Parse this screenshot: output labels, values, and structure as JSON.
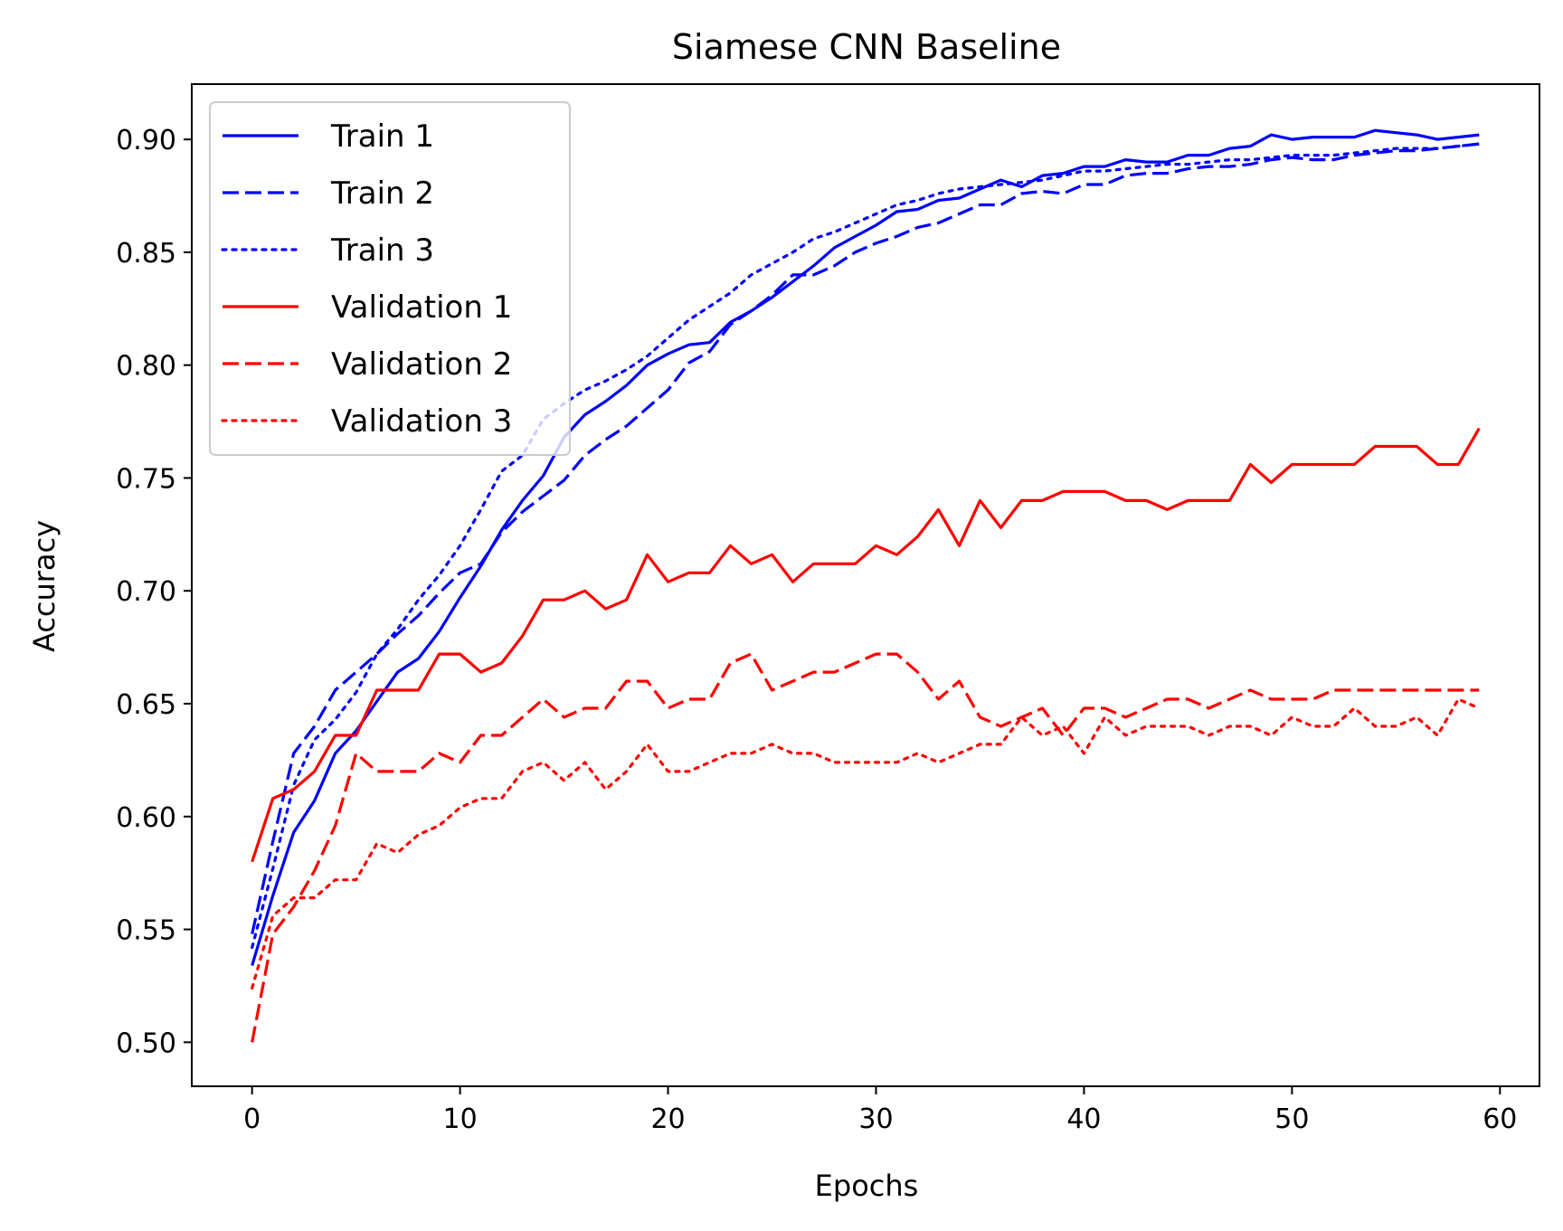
{
  "chart_data": {
    "type": "line",
    "title": "Siamese CNN Baseline",
    "xlabel": "Epochs",
    "ylabel": "Accuracy",
    "xlim": [
      -2.9,
      61.9
    ],
    "ylim": [
      0.4805,
      0.9245
    ],
    "xticks": [
      0,
      10,
      20,
      30,
      40,
      50,
      60
    ],
    "yticks": [
      0.5,
      0.55,
      0.6,
      0.65,
      0.7,
      0.75,
      0.8,
      0.85,
      0.9
    ],
    "xtick_labels": [
      "0",
      "10",
      "20",
      "30",
      "40",
      "50",
      "60"
    ],
    "ytick_labels": [
      "0.50",
      "0.55",
      "0.60",
      "0.65",
      "0.70",
      "0.75",
      "0.80",
      "0.85",
      "0.90"
    ],
    "grid": false,
    "legend_position": "upper-left",
    "series": [
      {
        "name": "Train 1",
        "color": "#0000ff",
        "style": "solid",
        "values": [
          0.534,
          0.565,
          0.593,
          0.607,
          0.628,
          0.638,
          0.651,
          0.664,
          0.67,
          0.682,
          0.697,
          0.711,
          0.727,
          0.74,
          0.751,
          0.768,
          0.778,
          0.784,
          0.791,
          0.8,
          0.805,
          0.809,
          0.81,
          0.819,
          0.824,
          0.83,
          0.837,
          0.844,
          0.852,
          0.857,
          0.862,
          0.868,
          0.869,
          0.873,
          0.874,
          0.878,
          0.882,
          0.879,
          0.884,
          0.885,
          0.888,
          0.888,
          0.891,
          0.89,
          0.89,
          0.893,
          0.893,
          0.896,
          0.897,
          0.902,
          0.9,
          0.901,
          0.901,
          0.901,
          0.904,
          0.903,
          0.902,
          0.9,
          0.901,
          0.902
        ]
      },
      {
        "name": "Train 2",
        "color": "#0000ff",
        "style": "dashed",
        "values": [
          0.548,
          0.589,
          0.628,
          0.64,
          0.656,
          0.664,
          0.672,
          0.681,
          0.689,
          0.699,
          0.708,
          0.712,
          0.726,
          0.735,
          0.742,
          0.749,
          0.76,
          0.767,
          0.773,
          0.781,
          0.789,
          0.801,
          0.806,
          0.818,
          0.824,
          0.831,
          0.84,
          0.84,
          0.844,
          0.85,
          0.854,
          0.857,
          0.861,
          0.863,
          0.867,
          0.871,
          0.871,
          0.876,
          0.877,
          0.876,
          0.88,
          0.88,
          0.884,
          0.885,
          0.885,
          0.887,
          0.888,
          0.888,
          0.889,
          0.891,
          0.892,
          0.891,
          0.891,
          0.893,
          0.894,
          0.895,
          0.895,
          0.896,
          0.897,
          0.898
        ]
      },
      {
        "name": "Train 3",
        "color": "#0000ff",
        "style": "dotted",
        "values": [
          0.542,
          0.577,
          0.614,
          0.634,
          0.643,
          0.655,
          0.672,
          0.683,
          0.696,
          0.707,
          0.72,
          0.736,
          0.753,
          0.76,
          0.776,
          0.783,
          0.789,
          0.793,
          0.798,
          0.804,
          0.812,
          0.82,
          0.826,
          0.832,
          0.84,
          0.845,
          0.85,
          0.856,
          0.859,
          0.863,
          0.867,
          0.871,
          0.873,
          0.876,
          0.878,
          0.879,
          0.88,
          0.881,
          0.882,
          0.884,
          0.886,
          0.886,
          0.887,
          0.888,
          0.889,
          0.889,
          0.89,
          0.891,
          0.891,
          0.892,
          0.893,
          0.893,
          0.893,
          0.894,
          0.895,
          0.896,
          0.896,
          0.896,
          0.897,
          0.898
        ]
      },
      {
        "name": "Validation 1",
        "color": "#ff0000",
        "style": "solid",
        "values": [
          0.58,
          0.608,
          0.612,
          0.62,
          0.636,
          0.636,
          0.656,
          0.656,
          0.656,
          0.672,
          0.672,
          0.664,
          0.668,
          0.68,
          0.696,
          0.696,
          0.7,
          0.692,
          0.696,
          0.716,
          0.704,
          0.708,
          0.708,
          0.72,
          0.712,
          0.716,
          0.704,
          0.712,
          0.712,
          0.712,
          0.72,
          0.716,
          0.724,
          0.736,
          0.72,
          0.74,
          0.728,
          0.74,
          0.74,
          0.744,
          0.744,
          0.744,
          0.74,
          0.74,
          0.736,
          0.74,
          0.74,
          0.74,
          0.756,
          0.748,
          0.756,
          0.756,
          0.756,
          0.756,
          0.764,
          0.764,
          0.764,
          0.756,
          0.756,
          0.772
        ]
      },
      {
        "name": "Validation 2",
        "color": "#ff0000",
        "style": "dashed",
        "values": [
          0.5,
          0.548,
          0.56,
          0.576,
          0.596,
          0.628,
          0.62,
          0.62,
          0.62,
          0.628,
          0.624,
          0.636,
          0.636,
          0.644,
          0.652,
          0.644,
          0.648,
          0.648,
          0.66,
          0.66,
          0.648,
          0.652,
          0.652,
          0.668,
          0.672,
          0.656,
          0.66,
          0.664,
          0.664,
          0.668,
          0.672,
          0.672,
          0.664,
          0.652,
          0.66,
          0.644,
          0.64,
          0.644,
          0.648,
          0.636,
          0.648,
          0.648,
          0.644,
          0.648,
          0.652,
          0.652,
          0.648,
          0.652,
          0.656,
          0.652,
          0.652,
          0.652,
          0.656,
          0.656,
          0.656,
          0.656,
          0.656,
          0.656,
          0.656,
          0.656
        ]
      },
      {
        "name": "Validation 3",
        "color": "#ff0000",
        "style": "dotted",
        "values": [
          0.524,
          0.556,
          0.564,
          0.564,
          0.572,
          0.572,
          0.588,
          0.584,
          0.592,
          0.596,
          0.604,
          0.608,
          0.608,
          0.62,
          0.624,
          0.616,
          0.624,
          0.612,
          0.62,
          0.632,
          0.62,
          0.62,
          0.624,
          0.628,
          0.628,
          0.632,
          0.628,
          0.628,
          0.624,
          0.624,
          0.624,
          0.624,
          0.628,
          0.624,
          0.628,
          0.632,
          0.632,
          0.644,
          0.636,
          0.64,
          0.628,
          0.644,
          0.636,
          0.64,
          0.64,
          0.64,
          0.636,
          0.64,
          0.64,
          0.636,
          0.644,
          0.64,
          0.64,
          0.648,
          0.64,
          0.64,
          0.644,
          0.636,
          0.652,
          0.648
        ]
      }
    ]
  }
}
